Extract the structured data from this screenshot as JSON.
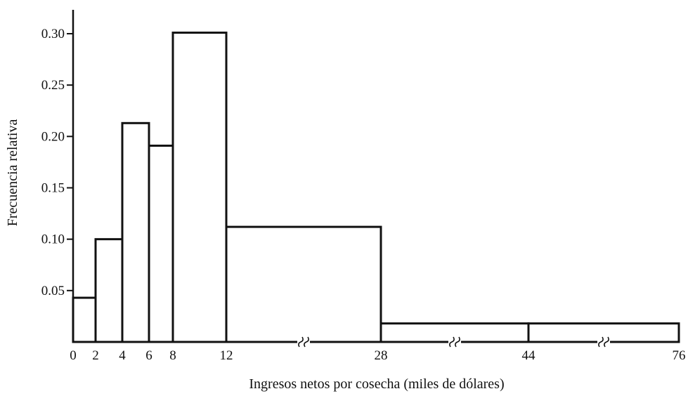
{
  "chart_data": {
    "type": "bar",
    "title": "",
    "xlabel": "Ingresos netos por cosecha (miles de dólares)",
    "ylabel": "Frecuencia relativa",
    "ylim": [
      0,
      0.32
    ],
    "grid": false,
    "bins": [
      {
        "from": 0,
        "to": 2,
        "value": 0.043
      },
      {
        "from": 2,
        "to": 4,
        "value": 0.1
      },
      {
        "from": 4,
        "to": 6,
        "value": 0.213
      },
      {
        "from": 6,
        "to": 8,
        "value": 0.191
      },
      {
        "from": 8,
        "to": 12,
        "value": 0.301
      },
      {
        "from": 12,
        "to": 28,
        "value": 0.112
      },
      {
        "from": 28,
        "to": 44,
        "value": 0.018
      },
      {
        "from": 44,
        "to": 76,
        "value": 0.018
      }
    ],
    "x_ticks": [
      {
        "value": 0,
        "label": "0"
      },
      {
        "value": 2,
        "label": "2"
      },
      {
        "value": 4,
        "label": "4"
      },
      {
        "value": 6,
        "label": "6"
      },
      {
        "value": 8,
        "label": "8"
      },
      {
        "value": 12,
        "label": "12"
      },
      {
        "value": 28,
        "label": "28"
      },
      {
        "value": 44,
        "label": "44"
      },
      {
        "value": 76,
        "label": "76"
      }
    ],
    "y_ticks": [
      {
        "value": 0.05,
        "label": "0.05"
      },
      {
        "value": 0.1,
        "label": "0.10"
      },
      {
        "value": 0.15,
        "label": "0.15"
      },
      {
        "value": 0.2,
        "label": "0.20"
      },
      {
        "value": 0.25,
        "label": "0.25"
      },
      {
        "value": 0.3,
        "label": "0.30"
      }
    ],
    "axis_breaks": [
      20,
      36,
      60
    ]
  }
}
